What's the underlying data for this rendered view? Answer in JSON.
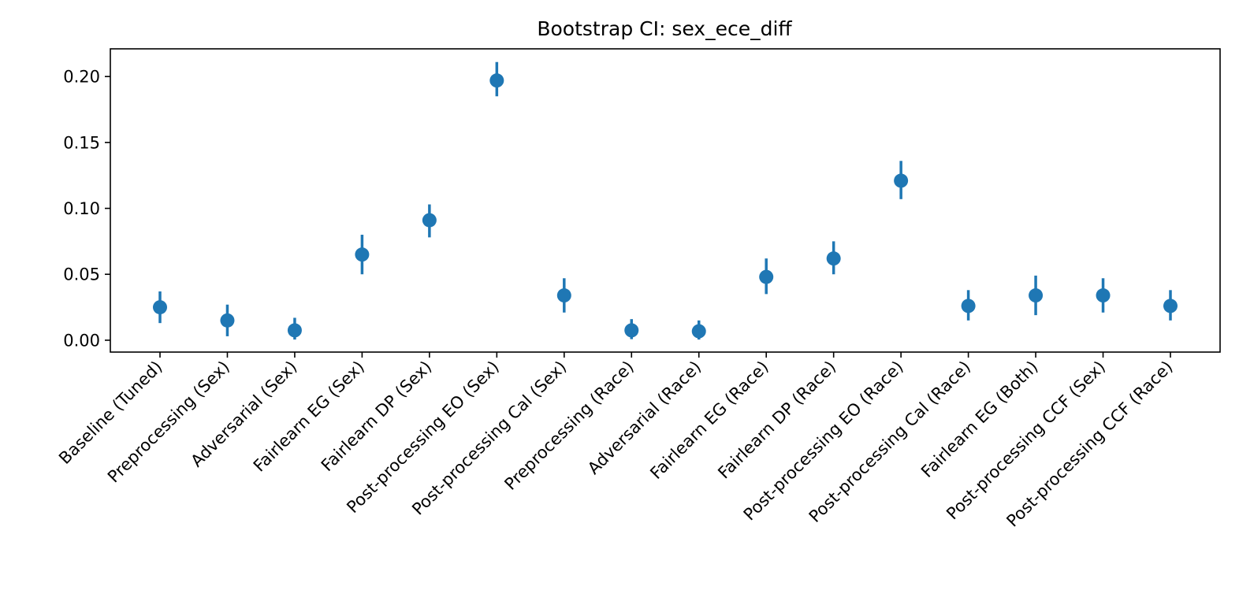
{
  "chart_data": {
    "type": "scatter",
    "title": "Bootstrap CI: sex_ece_diff",
    "xlabel": "",
    "ylabel": "",
    "ylim": [
      -0.009,
      0.221
    ],
    "yticks": [
      0.0,
      0.05,
      0.1,
      0.15,
      0.2
    ],
    "ytick_labels": [
      "0.00",
      "0.05",
      "0.10",
      "0.15",
      "0.20"
    ],
    "grid": false,
    "legend": false,
    "color": "#1f77b4",
    "categories": [
      "Baseline (Tuned)",
      "Preprocessing (Sex)",
      "Adversarial (Sex)",
      "Fairlearn EG (Sex)",
      "Fairlearn DP (Sex)",
      "Post-processing EO (Sex)",
      "Post-processing Cal (Sex)",
      "Preprocessing (Race)",
      "Adversarial (Race)",
      "Fairlearn EG (Race)",
      "Fairlearn DP (Race)",
      "Post-processing EO (Race)",
      "Post-processing Cal (Race)",
      "Fairlearn EG (Both)",
      "Post-processing CCF (Sex)",
      "Post-processing CCF (Race)"
    ],
    "values": [
      0.025,
      0.015,
      0.0075,
      0.065,
      0.091,
      0.197,
      0.034,
      0.0075,
      0.0068,
      0.048,
      0.062,
      0.121,
      0.026,
      0.034,
      0.034,
      0.026
    ],
    "ci_lower": [
      0.013,
      0.003,
      0.0005,
      0.05,
      0.078,
      0.185,
      0.021,
      0.0008,
      0.0005,
      0.035,
      0.05,
      0.107,
      0.015,
      0.019,
      0.021,
      0.015
    ],
    "ci_upper": [
      0.037,
      0.027,
      0.017,
      0.08,
      0.103,
      0.211,
      0.047,
      0.016,
      0.015,
      0.062,
      0.075,
      0.136,
      0.038,
      0.049,
      0.047,
      0.038
    ]
  }
}
